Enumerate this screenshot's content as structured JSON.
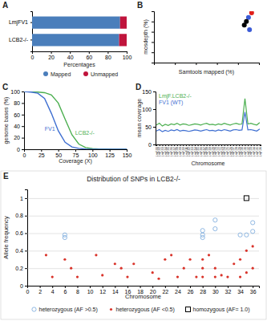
{
  "chart_data": [
    {
      "type": "bar",
      "panel": "A",
      "orientation": "horizontal",
      "stacked": true,
      "categories": [
        "LmjFV1",
        "LCB2-/-"
      ],
      "series": [
        {
          "name": "Mapped",
          "color": "#4a7ebb",
          "values": [
            93,
            92
          ]
        },
        {
          "name": "Unmapped",
          "color": "#c0143c",
          "values": [
            7,
            8
          ]
        }
      ],
      "xlim": [
        0,
        100
      ],
      "xticks": [
        0,
        20,
        40,
        60,
        80,
        100
      ],
      "xlabel": "Percentages",
      "legend": "bottom"
    },
    {
      "type": "scatter",
      "panel": "B",
      "x": [
        93,
        90,
        88,
        86,
        91
      ],
      "values": [
        97,
        88,
        80,
        73,
        64
      ],
      "colors": [
        "#e0201b",
        "#3b5bd6",
        "#000000",
        "#000000",
        "#3b5bd6"
      ],
      "xlim": [
        0,
        100
      ],
      "xticks": [
        0,
        20,
        40,
        60,
        80,
        100
      ],
      "ylim": [
        0,
        100
      ],
      "yticks": [
        0,
        20,
        40,
        60,
        80,
        100
      ],
      "tick_labels": false,
      "xlabel": "Samtools mapped (%)",
      "ylabel": "mosdepth (%)"
    },
    {
      "type": "line",
      "panel": "C",
      "x": [
        0,
        10,
        20,
        30,
        40,
        50,
        60,
        70,
        80,
        90,
        100,
        110,
        120,
        130,
        140,
        150
      ],
      "series": [
        {
          "name": "LCB2-/-",
          "color": "#4caf50",
          "values": [
            100,
            100,
            99,
            98,
            94,
            80,
            52,
            25,
            9,
            3,
            1,
            0.5,
            0.3,
            0.2,
            0.1,
            0
          ]
        },
        {
          "name": "FV1",
          "color": "#3f6fd1",
          "values": [
            100,
            99,
            97,
            88,
            62,
            32,
            12,
            4,
            1.5,
            0.5,
            0.2,
            0.1,
            0,
            0,
            0,
            0
          ]
        }
      ],
      "xlim": [
        0,
        150
      ],
      "xticks": [
        0,
        25,
        50,
        75,
        100,
        125,
        150
      ],
      "ylim": [
        0,
        100
      ],
      "yticks": [
        0,
        20,
        40,
        60,
        80,
        100
      ],
      "xlabel": "Coverage (X)",
      "ylabel": "genome bases (%)"
    },
    {
      "type": "line",
      "panel": "D",
      "categories": [
        "LmjF.01",
        "LmjF.02",
        "LmjF.03",
        "LmjF.04",
        "LmjF.05",
        "LmjF.06",
        "LmjF.07",
        "LmjF.08",
        "LmjF.09",
        "LmjF.10",
        "LmjF.11",
        "LmjF.12",
        "LmjF.13",
        "LmjF.14",
        "LmjF.15",
        "LmjF.16",
        "LmjF.17",
        "LmjF.18",
        "LmjF.19",
        "LmjF.20",
        "LmjF.21",
        "LmjF.22",
        "LmjF.23",
        "LmjF.24",
        "LmjF.25",
        "LmjF.26",
        "LmjF.27",
        "LmjF.28",
        "LmjF.29",
        "LmjF.30",
        "LmjF.31",
        "LmjF.32",
        "LmjF.33",
        "LmjF.34",
        "LmjF.35",
        "LmjF.36"
      ],
      "series": [
        {
          "name": "LmjF.LCB2-/-",
          "color": "#4caf50",
          "values": [
            55,
            60,
            52,
            57,
            54,
            58,
            56,
            60,
            55,
            58,
            57,
            54,
            56,
            58,
            57,
            55,
            58,
            60,
            56,
            57,
            55,
            58,
            56,
            60,
            57,
            55,
            58,
            60,
            57,
            58,
            130,
            58,
            60,
            57,
            55,
            62
          ]
        },
        {
          "name": "FV1 (WT)",
          "color": "#3f6fd1",
          "values": [
            38,
            42,
            36,
            40,
            37,
            41,
            39,
            42,
            38,
            40,
            39,
            37,
            39,
            41,
            40,
            38,
            40,
            42,
            39,
            40,
            38,
            41,
            39,
            42,
            40,
            38,
            41,
            42,
            40,
            41,
            92,
            41,
            42,
            40,
            38,
            44
          ]
        }
      ],
      "ylim": [
        0,
        150
      ],
      "yticks": [
        0,
        50,
        100,
        150
      ],
      "xlabel": "Chromosome",
      "ylabel": "mean coverage"
    },
    {
      "type": "scatter",
      "panel": "E",
      "title": "Distribution of SNPs in LCB2-/-",
      "series": [
        {
          "name": "heterozygous (AF >0.5)",
          "color": "#8fb8e3",
          "marker": "circle",
          "x": [
            6,
            6,
            28,
            28,
            28,
            30,
            30,
            34,
            35,
            36,
            36
          ],
          "values": [
            0.55,
            0.58,
            0.63,
            0.58,
            0.55,
            0.75,
            0.65,
            0.58,
            0.58,
            0.62,
            0.72
          ]
        },
        {
          "name": "heterozygous (AF <0.5)",
          "color": "#d9342b",
          "marker": "dot",
          "x": [
            3,
            4,
            6,
            7,
            8,
            11,
            12,
            14,
            15,
            16,
            17,
            20,
            21,
            22,
            23,
            24,
            25,
            26,
            27,
            28,
            28,
            28,
            29,
            30,
            30,
            31,
            32,
            33,
            34,
            34,
            35,
            35,
            36,
            36
          ],
          "values": [
            0.35,
            0.1,
            0.3,
            0.2,
            0.1,
            0.35,
            0.12,
            0.25,
            0.2,
            0.1,
            0.25,
            0.15,
            0.08,
            0.3,
            0.35,
            0.1,
            0.2,
            0.3,
            0.1,
            0.1,
            0.2,
            0.3,
            0.35,
            0.1,
            0.2,
            0.12,
            0.1,
            0.25,
            0.1,
            0.3,
            0.15,
            0.4,
            0.2,
            0.45
          ]
        },
        {
          "name": "homozygous (AF= 1.0)",
          "color": "#000000",
          "marker": "square",
          "x": [
            35
          ],
          "values": [
            1
          ]
        }
      ],
      "xlim": [
        0,
        37
      ],
      "xticks": [
        0,
        2,
        4,
        6,
        8,
        10,
        12,
        14,
        16,
        18,
        20,
        22,
        24,
        26,
        28,
        30,
        32,
        34,
        36
      ],
      "ylim": [
        0,
        1.1
      ],
      "yticks": [
        0,
        0.2,
        0.4,
        0.6,
        0.8,
        1
      ],
      "xlabel": "Chromosome",
      "ylabel": "Allele frequency",
      "grid": true,
      "legend": "bottom"
    }
  ]
}
